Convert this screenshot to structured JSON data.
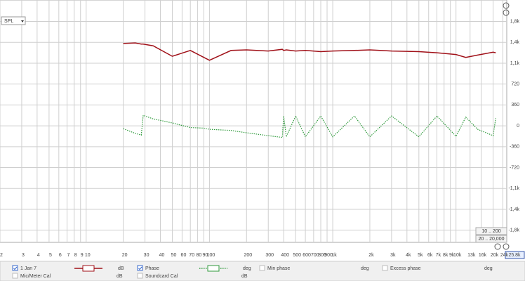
{
  "chart_data": {
    "type": "line",
    "xscale": "log",
    "grid": true,
    "x": [
      20,
      25,
      28,
      29,
      35,
      50,
      70,
      90,
      100,
      150,
      200,
      300,
      390,
      400,
      420,
      500,
      600,
      800,
      1000,
      1500,
      2000,
      3000,
      5000,
      7000,
      10000,
      12000,
      15000,
      20000,
      21000
    ],
    "series": [
      {
        "name": "1 Jan 7",
        "color": "#a01018",
        "values": [
          1420,
          1430,
          1410,
          1410,
          1380,
          1200,
          1300,
          1180,
          1130,
          1300,
          1310,
          1290,
          1320,
          1300,
          1310,
          1290,
          1300,
          1280,
          1290,
          1300,
          1310,
          1290,
          1280,
          1260,
          1230,
          1180,
          1220,
          1270,
          1260
        ]
      },
      {
        "name": "Phase",
        "color": "#2f9a3c",
        "values": [
          -50,
          -130,
          -160,
          180,
          120,
          50,
          -30,
          -40,
          -60,
          -80,
          -120,
          -170,
          -200,
          170,
          -190,
          170,
          -190,
          170,
          -190,
          170,
          -190,
          170,
          -190,
          170,
          -180,
          150,
          -60,
          -170,
          130
        ]
      }
    ],
    "xlim": [
      2,
      25800
    ],
    "xticks": [
      2,
      3,
      4,
      5,
      6,
      7,
      8,
      9,
      10,
      20,
      30,
      40,
      50,
      60,
      70,
      80,
      90,
      100,
      200,
      300,
      400,
      500,
      600,
      700,
      800,
      900,
      {
        "value": 1000,
        "label": "1k"
      },
      {
        "value": 2000,
        "label": "2k"
      },
      {
        "value": 3000,
        "label": "3k"
      },
      {
        "value": 4000,
        "label": "4k"
      },
      {
        "value": 5000,
        "label": "5k"
      },
      {
        "value": 6000,
        "label": "6k"
      },
      {
        "value": 7000,
        "label": "7k"
      },
      {
        "value": 8000,
        "label": "8k"
      },
      {
        "value": 9000,
        "label": "9k"
      },
      {
        "value": 10000,
        "label": "10k"
      },
      {
        "value": 13000,
        "label": "13k"
      },
      {
        "value": 16000,
        "label": "16k"
      },
      {
        "value": 20000,
        "label": "20k"
      },
      {
        "value": 24000,
        "label": "24k"
      }
    ],
    "xlim_label": "25.8k",
    "ylim": [
      -2010,
      2170
    ],
    "yticks": [
      {
        "value": 1800,
        "label": "1,8k"
      },
      {
        "value": 1440,
        "label": "1,4k"
      },
      {
        "value": 1080,
        "label": "1,1k"
      },
      720,
      360,
      0,
      -360,
      -720,
      {
        "value": -1080,
        "label": "-1,1k"
      },
      {
        "value": -1440,
        "label": "-1,4k"
      },
      {
        "value": -1800,
        "label": "-1,8k"
      }
    ],
    "units": [
      "dB",
      "deg"
    ]
  },
  "ui": {
    "selector": "SPL",
    "range_buttons": [
      "10 .. 200",
      "20 .. 20,000"
    ],
    "legend_extra": [
      {
        "name": "Min phase",
        "unit": "deg"
      },
      {
        "name": "Excess phase",
        "unit": "deg"
      },
      {
        "name": "Mic/Meter Cal",
        "unit": "dB"
      },
      {
        "name": "Soundcard Cal",
        "unit": "dB"
      }
    ]
  }
}
